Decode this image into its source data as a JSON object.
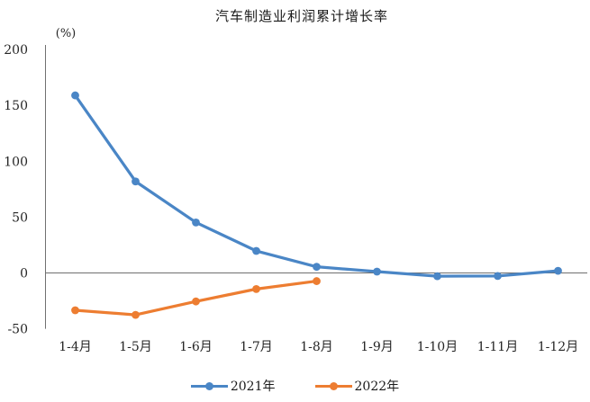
{
  "chart_data": {
    "type": "line",
    "title": "汽车制造业利润累计增长率",
    "unit_label": "(%)",
    "xlabel": "",
    "ylabel": "(%)",
    "categories": [
      "1-4月",
      "1-5月",
      "1-6月",
      "1-7月",
      "1-8月",
      "1-9月",
      "1-10月",
      "1-11月",
      "1-12月"
    ],
    "series": [
      {
        "name": "2021年",
        "color": "#4A86C6",
        "values": [
          158.9,
          81.9,
          45.2,
          19.7,
          5.5,
          1.2,
          -2.9,
          -2.7,
          1.9
        ]
      },
      {
        "name": "2022年",
        "color": "#ED7D31",
        "values": [
          -33.4,
          -37.5,
          -25.5,
          -14.4,
          -7.3,
          null,
          null,
          null,
          null
        ]
      }
    ],
    "y_ticks": [
      200,
      150,
      100,
      50,
      0,
      -50
    ],
    "ylim": [
      -50,
      200
    ],
    "grid": false,
    "legend_position": "bottom",
    "axis_color": "#707070",
    "text_color": "#262626",
    "background_color": "#ffffff"
  }
}
